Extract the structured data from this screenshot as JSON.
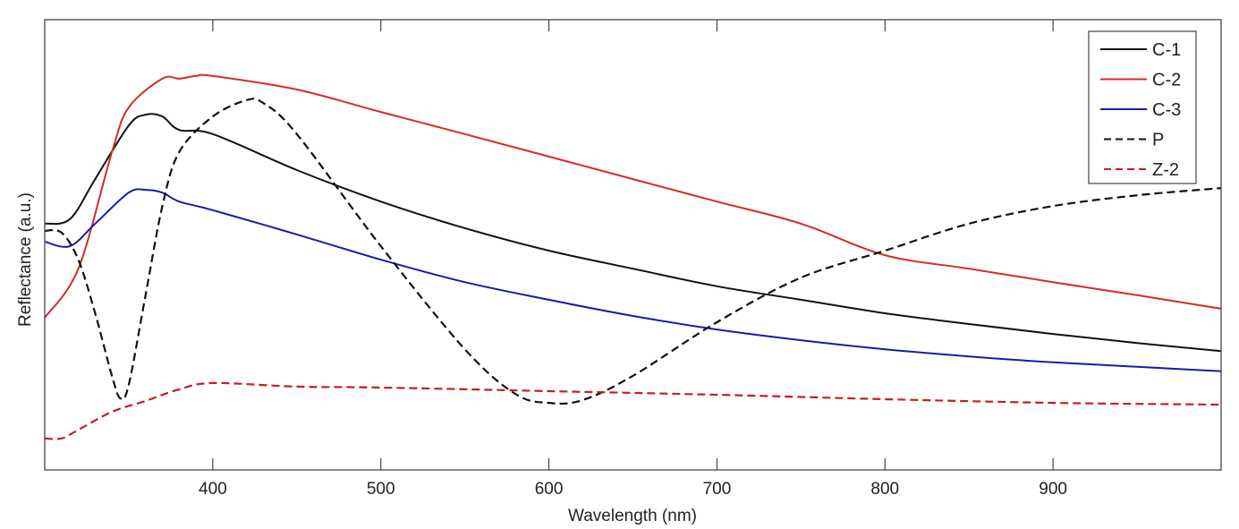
{
  "chart_data": {
    "type": "line",
    "title": "",
    "xlabel": "Wavelength (nm)",
    "ylabel": "Reflectance (a.u.)",
    "xlim": [
      300,
      1000
    ],
    "ylim": [
      0,
      100
    ],
    "xticks": [
      400,
      500,
      600,
      700,
      800,
      900
    ],
    "xtick_labels": [
      "400",
      "500",
      "600",
      "700",
      "800",
      "900"
    ],
    "grid": false,
    "legend_position": "top-right",
    "series": [
      {
        "name": "C-1",
        "color": "#111111",
        "dash": false,
        "x": [
          300,
          315,
          330,
          350,
          360,
          370,
          380,
          400,
          450,
          500,
          550,
          600,
          650,
          700,
          750,
          800,
          850,
          900,
          950,
          1000
        ],
        "y": [
          54.7,
          55.7,
          64.6,
          76.5,
          78.9,
          78.5,
          75.5,
          74.6,
          66.6,
          59.6,
          53.7,
          48.7,
          44.7,
          40.8,
          37.8,
          34.8,
          32.4,
          30.2,
          28.2,
          26.4
        ]
      },
      {
        "name": "C-2",
        "color": "#d42a2a",
        "dash": false,
        "x": [
          300,
          320,
          340,
          350,
          370,
          380,
          390,
          400,
          450,
          500,
          550,
          600,
          650,
          700,
          750,
          800,
          850,
          900,
          950,
          1000
        ],
        "y": [
          33.8,
          44.7,
          70.6,
          80.5,
          86.9,
          86.9,
          87.5,
          87.5,
          84.5,
          79.5,
          74.6,
          69.6,
          64.6,
          59.6,
          54.7,
          47.7,
          44.7,
          41.7,
          38.8,
          35.8
        ]
      },
      {
        "name": "C-3",
        "color": "#1a1aa8",
        "dash": false,
        "x": [
          300,
          315,
          330,
          350,
          360,
          370,
          380,
          400,
          450,
          500,
          550,
          600,
          650,
          700,
          750,
          800,
          850,
          900,
          950,
          1000
        ],
        "y": [
          50.7,
          49.7,
          54.7,
          61.6,
          62.2,
          61.6,
          59.6,
          57.7,
          52.3,
          46.7,
          41.7,
          37.8,
          34.2,
          31.2,
          28.8,
          26.8,
          25.2,
          23.9,
          22.9,
          21.9
        ]
      },
      {
        "name": "P",
        "color": "#111111",
        "dash": true,
        "x": [
          300,
          310,
          320,
          330,
          340,
          345,
          350,
          360,
          370,
          380,
          400,
          420,
          430,
          450,
          500,
          550,
          580,
          600,
          620,
          650,
          700,
          750,
          800,
          850,
          900,
          950,
          1000
        ],
        "y": [
          53.1,
          52.7,
          46.7,
          34.8,
          20.9,
          15.9,
          18.9,
          38.8,
          58.6,
          70.6,
          78.5,
          82.1,
          81.5,
          74.6,
          49.7,
          26.8,
          16.9,
          14.9,
          15.5,
          20.9,
          32.8,
          42.7,
          48.7,
          54.7,
          58.6,
          61.0,
          62.6
        ]
      },
      {
        "name": "Z-2",
        "color": "#c42020",
        "dash": true,
        "x": [
          300,
          310,
          320,
          340,
          360,
          380,
          400,
          450,
          500,
          600,
          700,
          800,
          900,
          1000
        ],
        "y": [
          7.0,
          7.0,
          8.9,
          12.9,
          15.3,
          17.9,
          19.3,
          18.5,
          18.3,
          17.5,
          16.7,
          15.7,
          14.9,
          14.5
        ]
      }
    ]
  }
}
